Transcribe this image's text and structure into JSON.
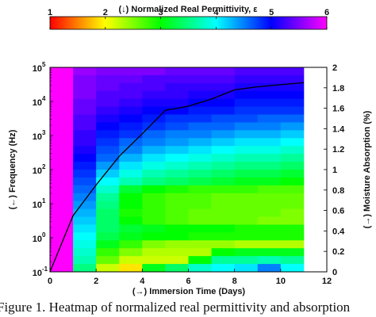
{
  "chart_data": {
    "type": "heatmap",
    "colorbar": {
      "label": "(↓) Normalized Real Permittivity, ε",
      "range": [
        1,
        6
      ],
      "ticks": [
        "1",
        "2",
        "3",
        "4",
        "5",
        "6"
      ],
      "colormap": "jet"
    },
    "x_axis": {
      "label": "(→) Immersion Time (Days)",
      "range": [
        0,
        12
      ],
      "ticks": [
        "0",
        "2",
        "4",
        "6",
        "8",
        "10",
        "12"
      ]
    },
    "y_left_axis": {
      "label": "(←) Frequency (Hz)",
      "scale": "log",
      "range": [
        0.1,
        100000
      ],
      "ticks": [
        "10",
        "10",
        "10",
        "10",
        "10",
        "10",
        "10"
      ],
      "tick_exponents": [
        "-1",
        "0",
        "1",
        "2",
        "3",
        "4",
        "5"
      ]
    },
    "y_right_axis": {
      "label": "(→) Moisture Absorption (%)",
      "range": [
        0,
        2
      ],
      "ticks": [
        "0",
        "0.2",
        "0.4",
        "0.6",
        "0.8",
        "1",
        "1.2",
        "1.4",
        "1.6",
        "1.8",
        "2"
      ]
    },
    "heatmap": {
      "x_edges": [
        0,
        1,
        2,
        3,
        4,
        5,
        6,
        7,
        8,
        9,
        10,
        11
      ],
      "rows_top_to_bottom": [
        [
          6.0,
          5.6,
          5.5,
          5.5,
          5.5,
          5.4,
          5.4,
          5.4,
          5.3,
          5.3,
          5.3
        ],
        [
          6.0,
          5.5,
          5.4,
          5.4,
          5.3,
          5.3,
          5.3,
          5.3,
          5.2,
          5.2,
          5.2
        ],
        [
          6.0,
          5.5,
          5.4,
          5.3,
          5.3,
          5.2,
          5.2,
          5.2,
          5.1,
          5.1,
          5.1
        ],
        [
          6.0,
          5.5,
          5.3,
          5.3,
          5.2,
          5.2,
          5.1,
          5.1,
          5.0,
          5.0,
          5.0
        ],
        [
          6.0,
          5.4,
          5.3,
          5.2,
          5.1,
          5.1,
          5.0,
          5.0,
          4.9,
          4.9,
          4.9
        ],
        [
          6.0,
          5.4,
          5.2,
          5.1,
          5.0,
          5.0,
          4.9,
          4.9,
          4.8,
          4.8,
          4.8
        ],
        [
          6.0,
          5.3,
          5.1,
          5.0,
          4.9,
          4.8,
          4.8,
          4.7,
          4.7,
          4.6,
          4.6
        ],
        [
          6.0,
          5.3,
          5.0,
          4.9,
          4.8,
          4.7,
          4.6,
          4.6,
          4.5,
          4.5,
          4.4
        ],
        [
          6.0,
          5.2,
          4.9,
          4.8,
          4.6,
          4.5,
          4.5,
          4.4,
          4.3,
          4.3,
          4.2
        ],
        [
          6.0,
          5.2,
          4.8,
          4.6,
          4.5,
          4.4,
          4.3,
          4.2,
          4.1,
          4.1,
          4.0
        ],
        [
          6.0,
          5.1,
          4.7,
          4.5,
          4.3,
          4.2,
          4.1,
          4.0,
          3.9,
          3.9,
          3.8
        ],
        [
          6.0,
          5.0,
          4.6,
          4.3,
          4.1,
          4.0,
          3.9,
          3.8,
          3.7,
          3.7,
          3.6
        ],
        [
          6.0,
          4.9,
          4.4,
          4.1,
          3.9,
          3.8,
          3.7,
          3.6,
          3.5,
          3.5,
          3.4
        ],
        [
          6.0,
          4.8,
          4.2,
          3.9,
          3.7,
          3.6,
          3.5,
          3.4,
          3.3,
          3.3,
          3.2
        ],
        [
          6.0,
          4.7,
          4.0,
          3.7,
          3.5,
          3.4,
          3.3,
          3.2,
          3.1,
          3.1,
          3.0
        ],
        [
          6.0,
          4.6,
          3.8,
          3.2,
          3.0,
          2.9,
          2.8,
          2.8,
          2.8,
          2.7,
          2.7
        ],
        [
          6.0,
          4.5,
          3.6,
          3.0,
          2.8,
          2.7,
          2.7,
          2.6,
          2.6,
          2.6,
          2.6
        ],
        [
          6.0,
          4.4,
          3.5,
          3.0,
          2.8,
          2.7,
          2.7,
          2.6,
          2.6,
          2.6,
          2.6
        ],
        [
          6.0,
          4.3,
          3.4,
          2.9,
          2.8,
          2.7,
          2.6,
          2.6,
          2.6,
          2.6,
          2.5
        ],
        [
          6.0,
          4.2,
          3.4,
          3.0,
          2.8,
          2.7,
          2.6,
          2.6,
          2.6,
          2.5,
          2.5
        ],
        [
          6.0,
          4.1,
          3.4,
          3.2,
          3.1,
          3.0,
          3.0,
          3.0,
          2.9,
          2.9,
          2.9
        ],
        [
          6.0,
          4.0,
          3.3,
          3.1,
          3.0,
          3.0,
          2.9,
          2.9,
          2.9,
          2.9,
          2.9
        ],
        [
          6.0,
          3.9,
          3.1,
          2.8,
          2.5,
          2.4,
          2.4,
          2.4,
          2.3,
          2.3,
          2.3
        ],
        [
          6.0,
          3.8,
          2.8,
          2.5,
          2.3,
          2.3,
          2.3,
          3.0,
          3.1,
          3.1,
          3.1
        ],
        [
          6.0,
          3.7,
          2.6,
          2.2,
          2.2,
          2.2,
          3.0,
          3.6,
          3.6,
          3.7,
          3.6
        ],
        [
          6.0,
          3.5,
          2.2,
          1.9,
          3.1,
          3.4,
          3.8,
          4.0,
          4.1,
          4.5,
          4.0
        ]
      ]
    },
    "moisture_curve": {
      "x": [
        0,
        1,
        2,
        3,
        4,
        5,
        6,
        7,
        8,
        9,
        10,
        11
      ],
      "y": [
        0,
        0.55,
        0.85,
        1.13,
        1.35,
        1.58,
        1.62,
        1.69,
        1.78,
        1.81,
        1.83,
        1.85
      ]
    }
  },
  "caption": "Figure 1. Heatmap of normalized real permittivity and absorption"
}
